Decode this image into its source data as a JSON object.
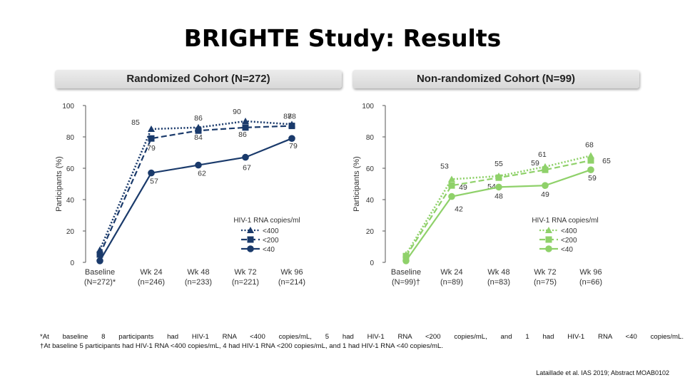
{
  "title": "BRIGHTE Study: Results",
  "colors": {
    "left_series": "#1a3a6b",
    "right_series": "#8fd16a",
    "axis": "#555555",
    "text": "#333333"
  },
  "chart_data": [
    {
      "type": "line",
      "title": "Randomized Cohort (N=272)",
      "ylabel": "Participants (%)",
      "ylim": [
        0,
        100
      ],
      "yticks": [
        "0",
        "20",
        "40",
        "60",
        "80",
        "100"
      ],
      "categories": [
        [
          "Baseline",
          "(N=272)*"
        ],
        [
          "Wk 24",
          "(n=246)"
        ],
        [
          "Wk 48",
          "(n=233)"
        ],
        [
          "Wk 72",
          "(n=221)"
        ],
        [
          "Wk 96",
          "(n=214)"
        ]
      ],
      "legend_title": "HIV-1 RNA copies/ml",
      "series": [
        {
          "name": "<400",
          "marker": "triangle",
          "dash": "dotted",
          "values": [
            8,
            85,
            86,
            90,
            88
          ],
          "labels": [
            "",
            "85",
            "86",
            "90",
            "88"
          ]
        },
        {
          "name": "<200",
          "marker": "square",
          "dash": "dashed",
          "values": [
            5,
            79,
            84,
            86,
            87
          ],
          "labels": [
            "",
            "79",
            "84",
            "86",
            "87"
          ]
        },
        {
          "name": "<40",
          "marker": "circle",
          "dash": "solid",
          "values": [
            1,
            57,
            62,
            67,
            79
          ],
          "labels": [
            "",
            "57",
            "62",
            "67",
            "79"
          ]
        }
      ]
    },
    {
      "type": "line",
      "title": "Non-randomized Cohort (N=99)",
      "ylabel": "Participants (%)",
      "ylim": [
        0,
        100
      ],
      "yticks": [
        "0",
        "20",
        "40",
        "60",
        "80",
        "100"
      ],
      "categories": [
        [
          "Baseline",
          "(N=99)†"
        ],
        [
          "Wk 24",
          "(n=89)"
        ],
        [
          "Wk 48",
          "(n=83)"
        ],
        [
          "Wk 72",
          "(n=75)"
        ],
        [
          "Wk 96",
          "(n=66)"
        ]
      ],
      "legend_title": "HIV-1 RNA copies/ml",
      "series": [
        {
          "name": "<400",
          "marker": "triangle",
          "dash": "dotted",
          "values": [
            5,
            53,
            55,
            61,
            68
          ],
          "labels": [
            "",
            "53",
            "55",
            "61",
            "68"
          ]
        },
        {
          "name": "<200",
          "marker": "square",
          "dash": "dashed",
          "values": [
            4,
            49,
            54,
            59,
            65
          ],
          "labels": [
            "",
            "49",
            "54",
            "59",
            "65"
          ]
        },
        {
          "name": "<40",
          "marker": "circle",
          "dash": "solid",
          "values": [
            1,
            42,
            48,
            49,
            59
          ],
          "labels": [
            "",
            "42",
            "48",
            "49",
            "59"
          ]
        }
      ]
    }
  ],
  "footnotes": {
    "fn1": "*At baseline 8 participants had HIV-1 RNA <400 copies/mL, 5 had HIV-1 RNA <200 copies/mL, and 1 had HIV-1 RNA <40 copies/mL.",
    "fn2": "†At baseline 5 participants had HIV-1 RNA <400 copies/mL, 4 had HIV-1 RNA <200 copies/mL, and 1 had HIV-1 RNA <40 copies/mL."
  },
  "citation": "Lataillade et al. IAS 2019; Abstract MOAB0102"
}
